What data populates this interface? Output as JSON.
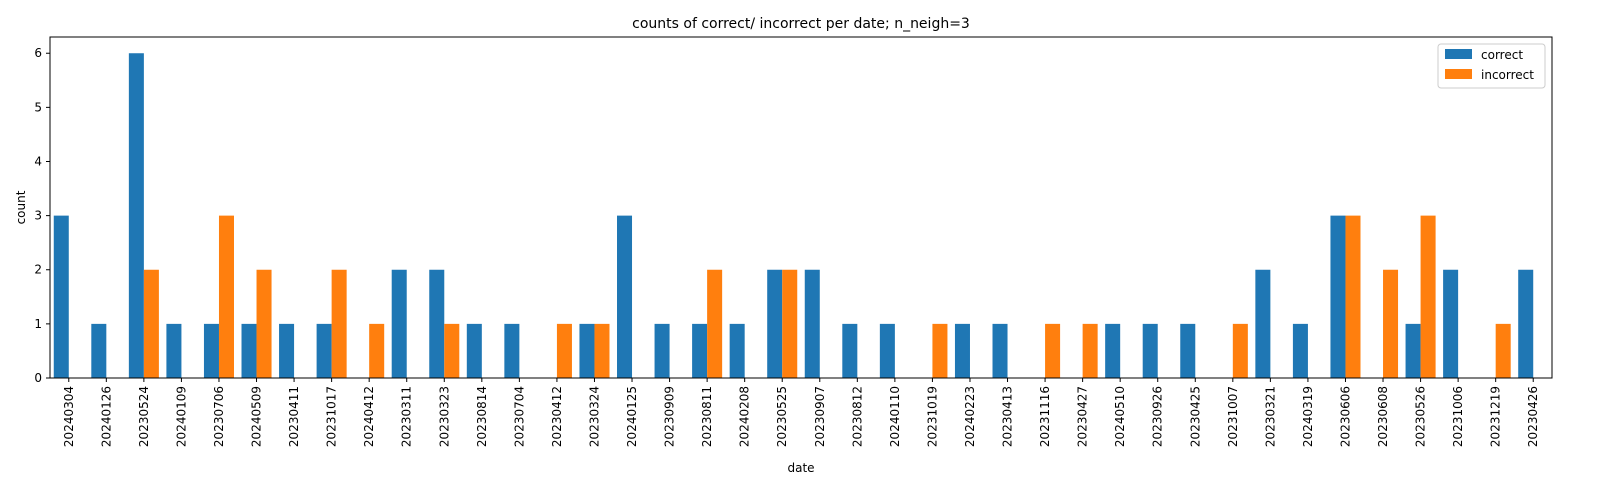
{
  "chart_data": {
    "type": "bar",
    "title": "counts of correct/ incorrect per date; n_neigh=3",
    "xlabel": "date",
    "ylabel": "count",
    "ylim": [
      0,
      6.3
    ],
    "yticks": [
      0,
      1,
      2,
      3,
      4,
      5,
      6
    ],
    "grid": false,
    "legend_position": "top-right",
    "categories": [
      "20240304",
      "20240126",
      "20230524",
      "20240109",
      "20230706",
      "20240509",
      "20230411",
      "20231017",
      "20240412",
      "20230311",
      "20230323",
      "20230814",
      "20230704",
      "20230412",
      "20230324",
      "20240125",
      "20230909",
      "20230811",
      "20240208",
      "20230525",
      "20230907",
      "20230812",
      "20240110",
      "20231019",
      "20240223",
      "20230413",
      "20231116",
      "20230427",
      "20240510",
      "20230926",
      "20230425",
      "20231007",
      "20230321",
      "20240319",
      "20230606",
      "20230608",
      "20230526",
      "20231006",
      "20231219",
      "20230426"
    ],
    "series": [
      {
        "name": "correct",
        "color": "#1f77b4",
        "values": [
          3,
          1,
          6,
          1,
          1,
          1,
          1,
          1,
          0,
          2,
          2,
          1,
          1,
          0,
          1,
          3,
          1,
          1,
          1,
          2,
          2,
          1,
          1,
          0,
          1,
          1,
          0,
          0,
          1,
          1,
          1,
          0,
          2,
          1,
          3,
          0,
          1,
          2,
          0,
          2
        ]
      },
      {
        "name": "incorrect",
        "color": "#ff7f0e",
        "values": [
          0,
          0,
          2,
          0,
          3,
          2,
          0,
          2,
          1,
          0,
          1,
          0,
          0,
          1,
          1,
          0,
          0,
          2,
          0,
          2,
          0,
          0,
          0,
          1,
          0,
          0,
          1,
          1,
          0,
          0,
          0,
          1,
          0,
          0,
          3,
          2,
          3,
          0,
          1,
          0
        ]
      }
    ]
  }
}
